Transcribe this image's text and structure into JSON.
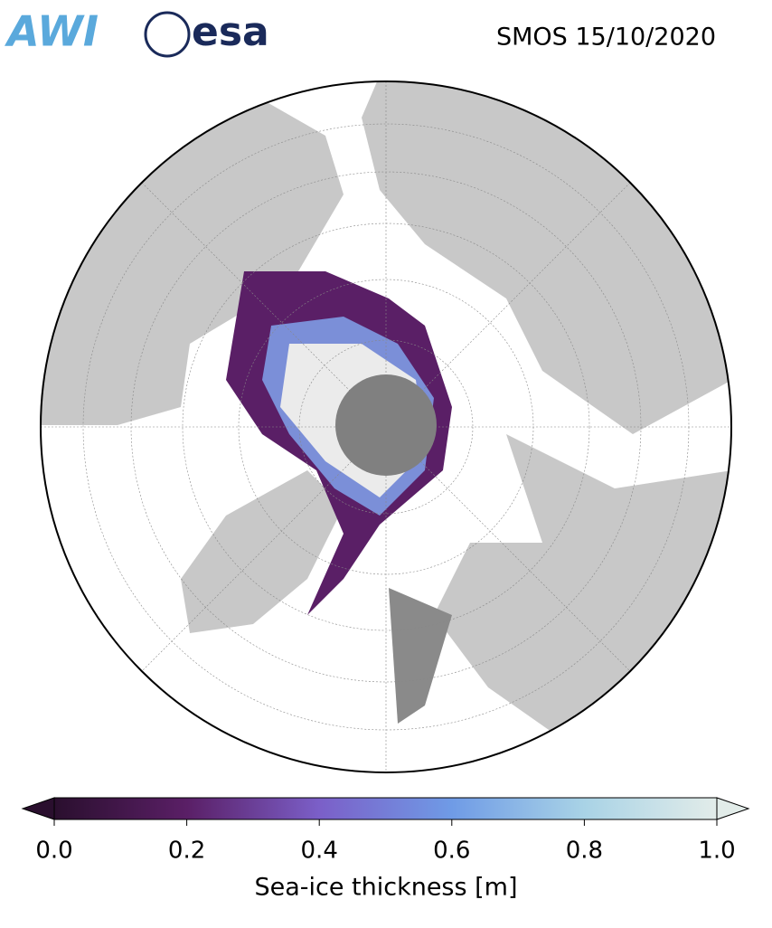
{
  "header": {
    "logos": [
      "AWI",
      "esa"
    ],
    "title": "SMOS 15/10/2020"
  },
  "colorbar": {
    "label": "Sea-ice thickness [m]",
    "lim": [
      0,
      1
    ],
    "ticks": [
      {
        "value": 0,
        "label": "0.0"
      },
      0.2,
      0.4,
      0.6,
      0.8,
      {
        "value": 1,
        "label": "1.0"
      }
    ],
    "colors": [
      "#2a0f2e",
      "#5a1f66",
      "#7b5fc8",
      "#6f9be6",
      "#a9d3e6",
      "#e2ece9"
    ]
  }
}
